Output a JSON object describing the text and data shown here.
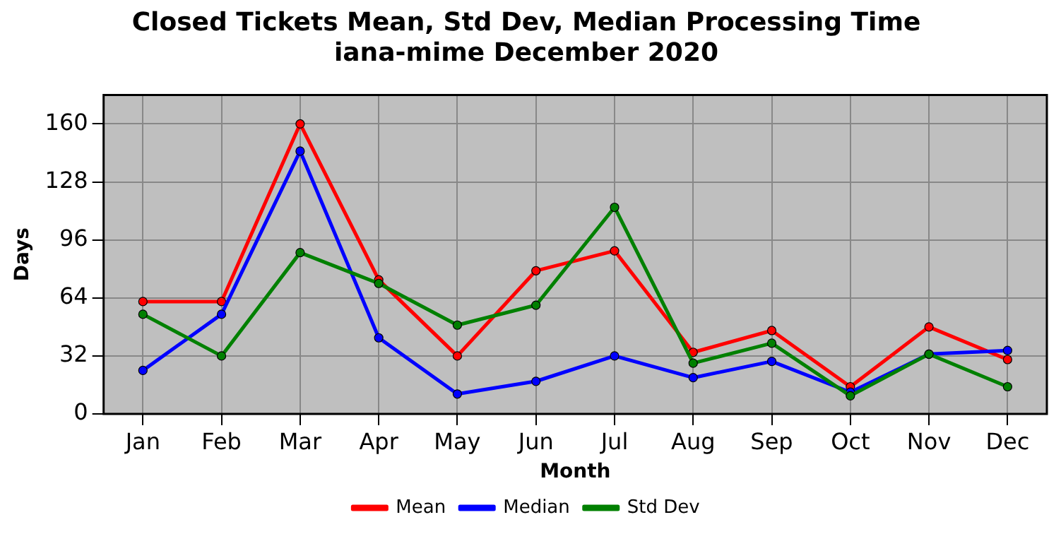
{
  "chart_data": {
    "type": "line",
    "title": "Closed Tickets Mean, Std Dev, Median Processing Time\niana-mime December 2020",
    "xlabel": "Month",
    "ylabel": "Days",
    "categories": [
      "Jan",
      "Feb",
      "Mar",
      "Apr",
      "May",
      "Jun",
      "Jul",
      "Aug",
      "Sep",
      "Oct",
      "Nov",
      "Dec"
    ],
    "series": [
      {
        "name": "Mean",
        "color": "#ff0000",
        "values": [
          62,
          62,
          160,
          74,
          32,
          79,
          90,
          34,
          46,
          15,
          48,
          30
        ]
      },
      {
        "name": "Median",
        "color": "#0000ff",
        "values": [
          24,
          55,
          145,
          42,
          11,
          18,
          32,
          20,
          29,
          12,
          33,
          35
        ]
      },
      {
        "name": "Std Dev",
        "color": "#008000",
        "values": [
          55,
          32,
          89,
          72,
          49,
          60,
          114,
          28,
          39,
          10,
          33,
          15
        ]
      }
    ],
    "ylim": [
      0,
      176
    ],
    "yticks": [
      0,
      32,
      64,
      96,
      128,
      160
    ],
    "grid": true,
    "legend": "bottom",
    "marker": "circle",
    "line_style": "solid"
  }
}
